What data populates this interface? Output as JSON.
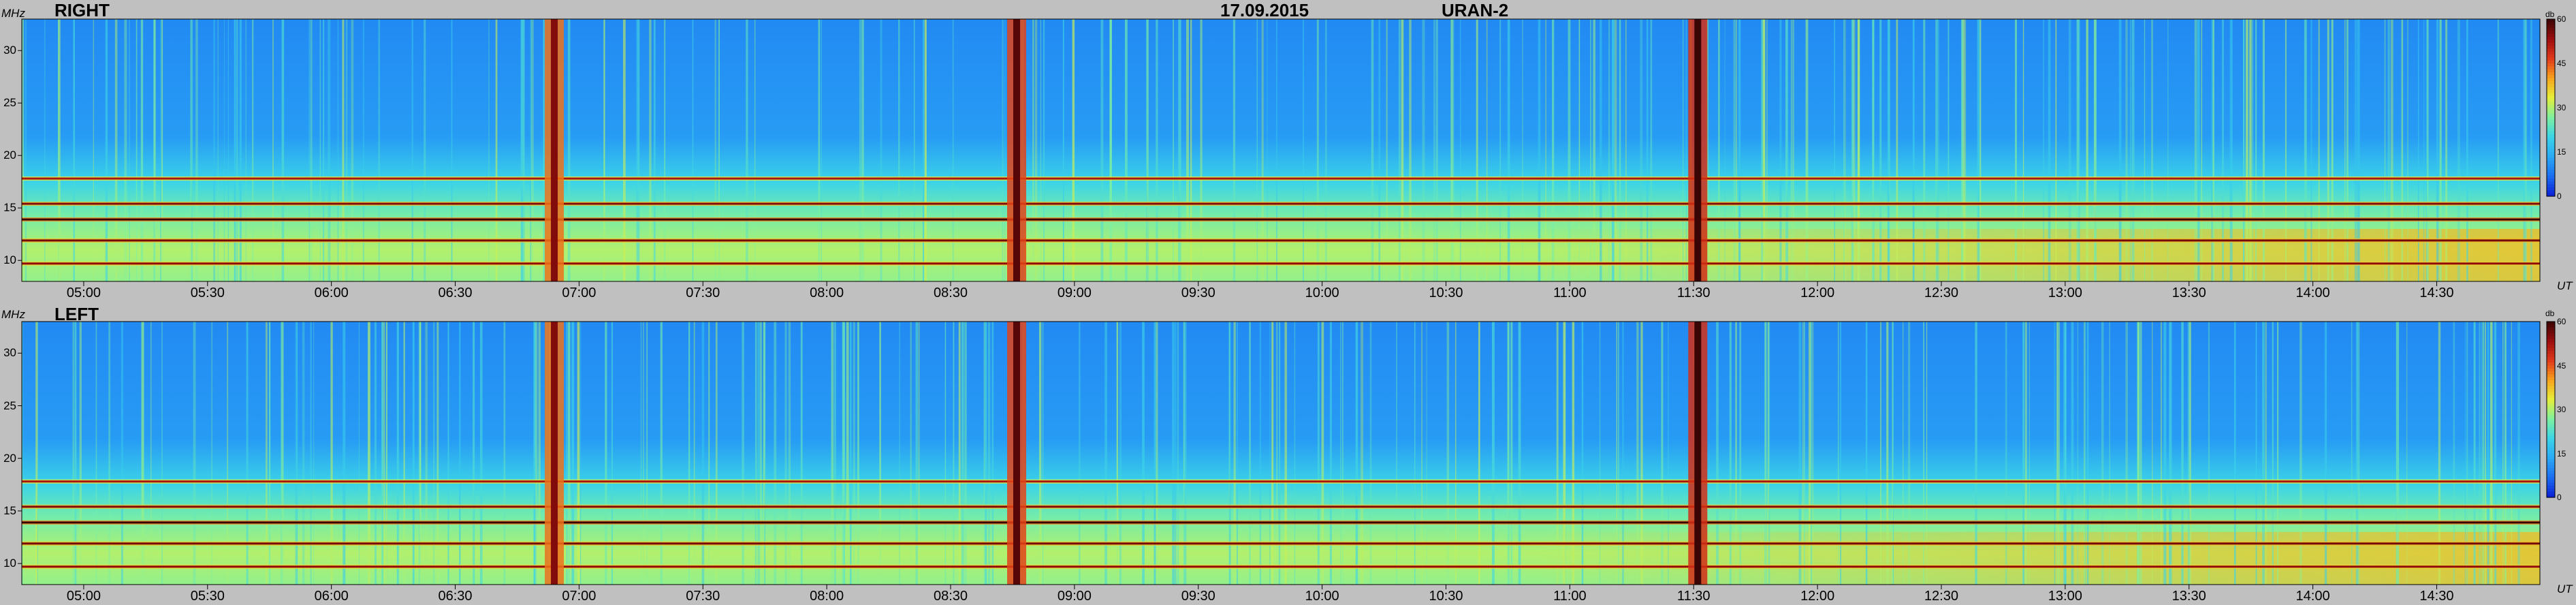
{
  "header": {
    "date": "17.09.2015",
    "instrument": "URAN-2"
  },
  "colors": {
    "background": "#c0c0c0",
    "colormap": [
      "#0b1fd6",
      "#1a6cf0",
      "#2aa8f5",
      "#3bd3e8",
      "#7ef0a0",
      "#e6ef3a",
      "#f7a21c",
      "#e0381a",
      "#9a0d0d",
      "#3a0505"
    ]
  },
  "chart_data": [
    {
      "type": "heatmap",
      "title": "RIGHT",
      "ylabel": "MHz",
      "xlabel": "UT",
      "ylim": [
        8,
        33
      ],
      "yticks": [
        "10",
        "15",
        "20",
        "25",
        "30"
      ],
      "xlim": [
        "04:45",
        "14:55"
      ],
      "xticks": [
        "05:00",
        "05:30",
        "06:00",
        "06:30",
        "07:00",
        "07:30",
        "08:00",
        "08:30",
        "09:00",
        "09:30",
        "10:00",
        "10:30",
        "11:00",
        "11:30",
        "12:00",
        "12:30",
        "13:00",
        "13:30",
        "14:00",
        "14:30"
      ],
      "colorbar": {
        "label": "db",
        "range": [
          0,
          60
        ],
        "ticks": [
          "0",
          "15",
          "30",
          "45",
          "60"
        ]
      },
      "features": {
        "horizontal_bands_mhz": [
          {
            "freq": 17.8,
            "level": 52
          },
          {
            "freq": 15.4,
            "level": 55
          },
          {
            "freq": 13.9,
            "level": 60
          },
          {
            "freq": 11.9,
            "level": 56
          },
          {
            "freq": 9.7,
            "level": 54
          }
        ],
        "vertical_bursts": [
          {
            "time": "06:54",
            "level": 55
          },
          {
            "time": "08:46",
            "level": 58
          },
          {
            "time": "11:31",
            "level": 60
          }
        ]
      }
    },
    {
      "type": "heatmap",
      "title": "LEFT",
      "ylabel": "MHz",
      "xlabel": "UT",
      "ylim": [
        8,
        33
      ],
      "yticks": [
        "10",
        "15",
        "20",
        "25",
        "30"
      ],
      "xlim": [
        "04:45",
        "14:55"
      ],
      "xticks": [
        "05:00",
        "05:30",
        "06:00",
        "06:30",
        "07:00",
        "07:30",
        "08:00",
        "08:30",
        "09:00",
        "09:30",
        "10:00",
        "10:30",
        "11:00",
        "11:30",
        "12:00",
        "12:30",
        "13:00",
        "13:30",
        "14:00",
        "14:30"
      ],
      "colorbar": {
        "label": "db",
        "range": [
          0,
          60
        ],
        "ticks": [
          "0",
          "15",
          "30",
          "45",
          "60"
        ]
      },
      "features": {
        "horizontal_bands_mhz": [
          {
            "freq": 17.8,
            "level": 52
          },
          {
            "freq": 15.4,
            "level": 55
          },
          {
            "freq": 13.9,
            "level": 60
          },
          {
            "freq": 11.9,
            "level": 56
          },
          {
            "freq": 9.7,
            "level": 54
          }
        ],
        "vertical_bursts": [
          {
            "time": "06:54",
            "level": 55
          },
          {
            "time": "08:46",
            "level": 58
          },
          {
            "time": "11:31",
            "level": 60
          }
        ]
      }
    }
  ]
}
